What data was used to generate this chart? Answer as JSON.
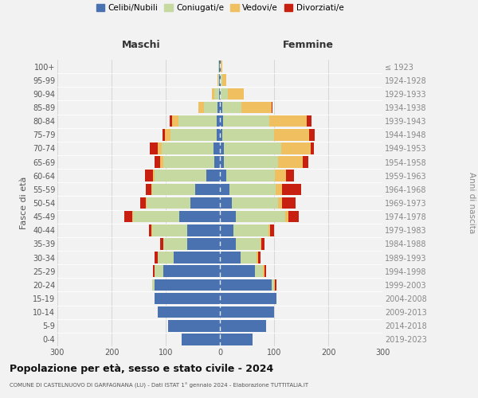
{
  "age_groups": [
    "0-4",
    "5-9",
    "10-14",
    "15-19",
    "20-24",
    "25-29",
    "30-34",
    "35-39",
    "40-44",
    "45-49",
    "50-54",
    "55-59",
    "60-64",
    "65-69",
    "70-74",
    "75-79",
    "80-84",
    "85-89",
    "90-94",
    "95-99",
    "100+"
  ],
  "birth_years": [
    "2019-2023",
    "2014-2018",
    "2009-2013",
    "2004-2008",
    "1999-2003",
    "1994-1998",
    "1989-1993",
    "1984-1988",
    "1979-1983",
    "1974-1978",
    "1969-1973",
    "1964-1968",
    "1959-1963",
    "1954-1958",
    "1949-1953",
    "1944-1948",
    "1939-1943",
    "1934-1938",
    "1929-1933",
    "1924-1928",
    "≤ 1923"
  ],
  "maschi_celibi": [
    70,
    95,
    115,
    120,
    120,
    105,
    85,
    60,
    60,
    75,
    55,
    45,
    25,
    10,
    12,
    6,
    6,
    4,
    2,
    1,
    2
  ],
  "maschi_coniugati": [
    0,
    0,
    0,
    0,
    5,
    15,
    30,
    45,
    65,
    85,
    80,
    80,
    95,
    95,
    95,
    85,
    70,
    25,
    8,
    2,
    1
  ],
  "maschi_vedovi": [
    0,
    0,
    0,
    0,
    0,
    0,
    0,
    0,
    1,
    2,
    2,
    2,
    3,
    5,
    8,
    10,
    12,
    10,
    5,
    1,
    0
  ],
  "maschi_divorziati": [
    0,
    0,
    0,
    0,
    0,
    3,
    5,
    5,
    5,
    15,
    10,
    10,
    15,
    10,
    15,
    5,
    5,
    0,
    0,
    0,
    0
  ],
  "femmine_nubili": [
    60,
    85,
    100,
    105,
    95,
    65,
    38,
    30,
    25,
    30,
    22,
    18,
    12,
    8,
    8,
    5,
    6,
    5,
    2,
    1,
    1
  ],
  "femmine_coniugate": [
    0,
    0,
    0,
    0,
    5,
    15,
    30,
    45,
    65,
    90,
    85,
    85,
    90,
    100,
    105,
    95,
    85,
    35,
    12,
    3,
    1
  ],
  "femmine_vedove": [
    0,
    0,
    0,
    0,
    2,
    2,
    2,
    2,
    2,
    6,
    8,
    12,
    20,
    45,
    55,
    65,
    70,
    55,
    30,
    8,
    2
  ],
  "femmine_divorziate": [
    0,
    0,
    0,
    0,
    2,
    3,
    5,
    5,
    8,
    20,
    25,
    35,
    15,
    10,
    5,
    10,
    8,
    2,
    0,
    0,
    0
  ],
  "color_celibi": "#4a72b0",
  "color_coniugati": "#c5d9a0",
  "color_vedovi": "#f0c060",
  "color_divorziati": "#c82010",
  "xlim": 300,
  "xticks": [
    -300,
    -200,
    -100,
    0,
    100,
    200,
    300
  ],
  "xtick_labels": [
    "300",
    "200",
    "100",
    "0",
    "100",
    "200",
    "300"
  ],
  "title": "Popolazione per età, sesso e stato civile - 2024",
  "subtitle": "COMUNE DI CASTELNUOVO DI GARFAGNANA (LU) - Dati ISTAT 1° gennaio 2024 - Elaborazione TUTTITALIA.IT",
  "ylabel": "Fasce di età",
  "right_ylabel": "Anni di nascita",
  "maschi_label": "Maschi",
  "femmine_label": "Femmine",
  "legend_labels": [
    "Celibi/Nubili",
    "Coniugati/e",
    "Vedovi/e",
    "Divorziati/e"
  ],
  "bg_color": "#f2f2f2",
  "bar_height": 0.85
}
